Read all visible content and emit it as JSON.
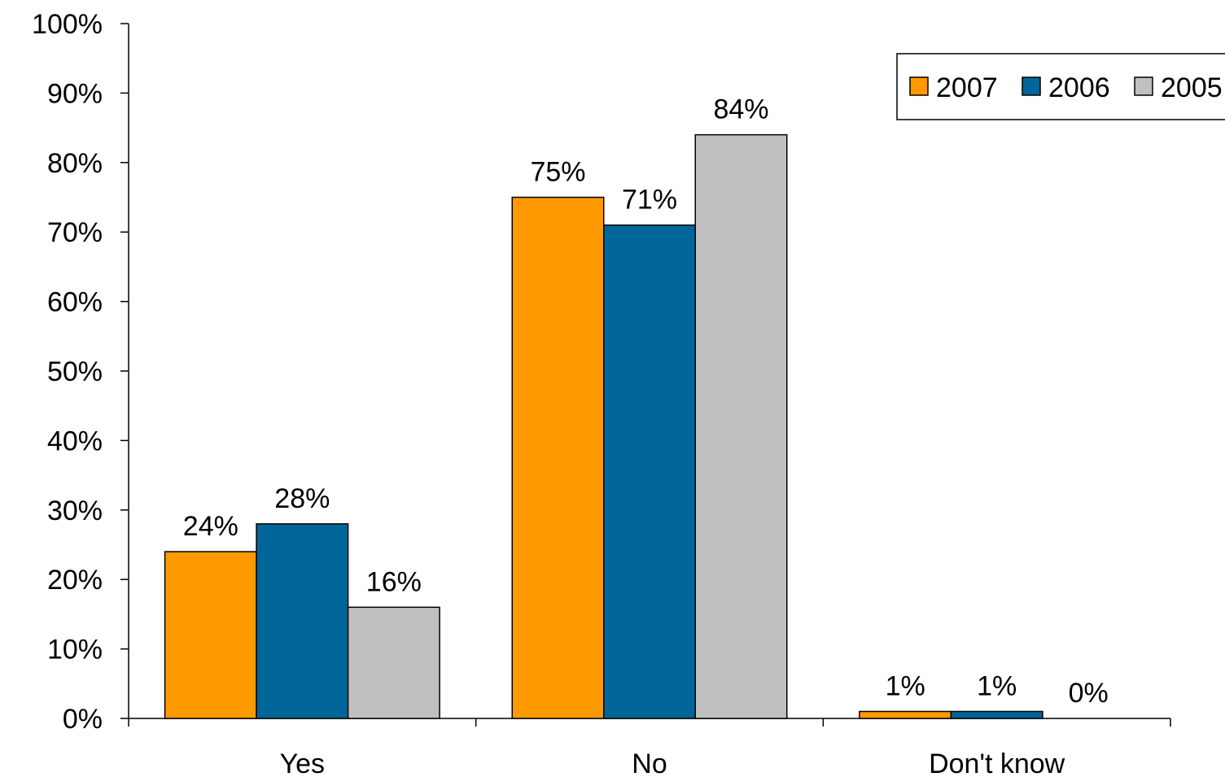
{
  "chart_data": {
    "type": "bar",
    "title": "",
    "xlabel": "",
    "ylabel": "",
    "categories": [
      "Yes",
      "No",
      "Don't know"
    ],
    "series": [
      {
        "name": "2007",
        "values": [
          24,
          75,
          1
        ],
        "labels": [
          "24%",
          "75%",
          "1%"
        ],
        "color": "#FF9900"
      },
      {
        "name": "2006",
        "values": [
          28,
          71,
          1
        ],
        "labels": [
          "28%",
          "71%",
          "1%"
        ],
        "color": "#006699"
      },
      {
        "name": "2005",
        "values": [
          16,
          84,
          0
        ],
        "labels": [
          "16%",
          "84%",
          "0%"
        ],
        "color": "#C0C0C0"
      }
    ],
    "ylim": [
      0,
      100
    ],
    "yticks": [
      0,
      10,
      20,
      30,
      40,
      50,
      60,
      70,
      80,
      90,
      100
    ],
    "ytick_labels": [
      "0%",
      "10%",
      "20%",
      "30%",
      "40%",
      "50%",
      "60%",
      "70%",
      "80%",
      "90%",
      "100%"
    ],
    "grid": false,
    "legend": "top-right"
  }
}
